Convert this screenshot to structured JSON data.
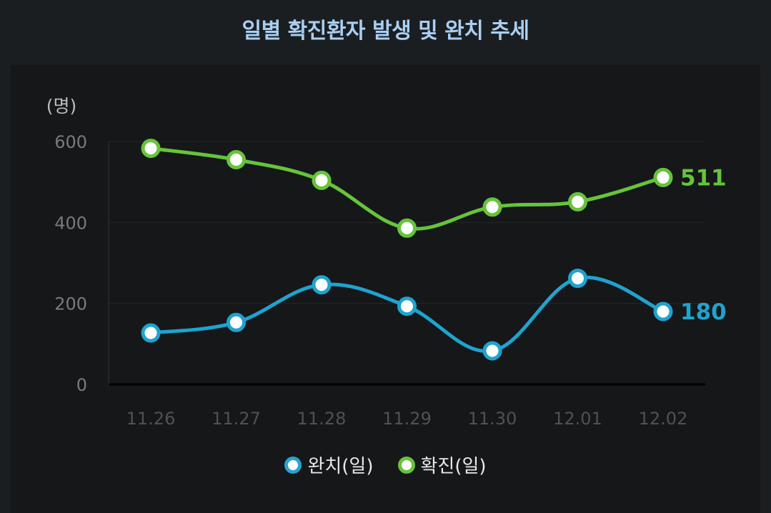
{
  "chart_data": {
    "type": "line",
    "title": "일별 확진환자 발생 및 완치 추세",
    "unit_label": "(명)",
    "categories": [
      "11.26",
      "11.27",
      "11.28",
      "11.29",
      "11.30",
      "12.01",
      "12.02"
    ],
    "ylim": [
      0,
      600
    ],
    "yticks": [
      "0",
      "200",
      "400",
      "600"
    ],
    "grid": true,
    "legend_position": "bottom-center",
    "series": [
      {
        "name": "완치(일)",
        "color": "#1fa3cf",
        "values": [
          127,
          153,
          246,
          193,
          83,
          262,
          180
        ],
        "last_label": "180"
      },
      {
        "name": "확진(일)",
        "color": "#66c43a",
        "values": [
          583,
          555,
          504,
          386,
          438,
          451,
          511
        ],
        "last_label": "511"
      }
    ]
  }
}
